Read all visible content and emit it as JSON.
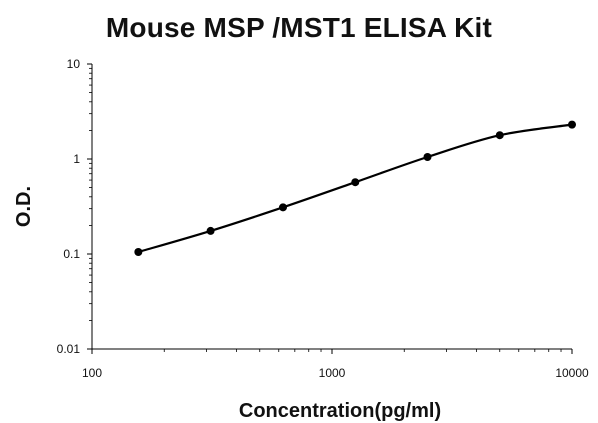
{
  "chart_data": {
    "type": "line",
    "title": "Mouse MSP /MST1 ELISA Kit",
    "xlabel": "Concentration(pg/ml)",
    "ylabel": "O.D.",
    "xscale": "log",
    "yscale": "log",
    "xlim": [
      100,
      10000
    ],
    "ylim": [
      0.01,
      10
    ],
    "x_ticks": [
      "100",
      "1000",
      "10000"
    ],
    "y_ticks": [
      "0.01",
      "0.1",
      "1",
      "10"
    ],
    "grid": false,
    "legend": "none",
    "line_color": "#000000",
    "series": [
      {
        "x": [
          156,
          312,
          625,
          1250,
          2500,
          5000,
          10000
        ],
        "values": [
          0.105,
          0.175,
          0.31,
          0.57,
          1.05,
          1.78,
          2.3
        ]
      }
    ]
  }
}
